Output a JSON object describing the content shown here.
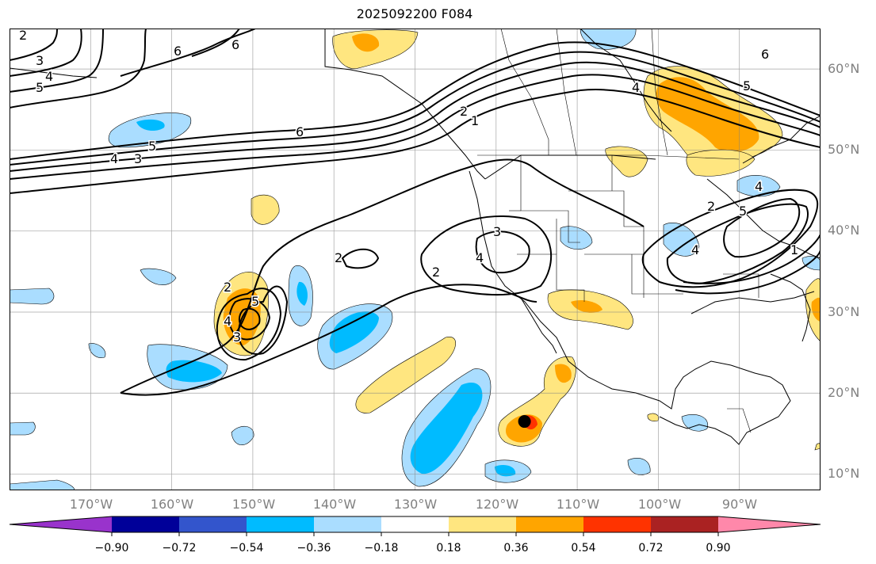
{
  "title": "2025092200 F084",
  "lat_ticks": [
    {
      "value": 60,
      "label": "60°N"
    },
    {
      "value": 50,
      "label": "50°N"
    },
    {
      "value": 40,
      "label": "40°N"
    },
    {
      "value": 30,
      "label": "30°N"
    },
    {
      "value": 20,
      "label": "20°N"
    },
    {
      "value": 10,
      "label": "10°N"
    }
  ],
  "lon_ticks": [
    {
      "value": -170,
      "label": "170°W"
    },
    {
      "value": -160,
      "label": "160°W"
    },
    {
      "value": -150,
      "label": "150°W"
    },
    {
      "value": -140,
      "label": "140°W"
    },
    {
      "value": -130,
      "label": "130°W"
    },
    {
      "value": -120,
      "label": "120°W"
    },
    {
      "value": -110,
      "label": "110°W"
    },
    {
      "value": -100,
      "label": "100°W"
    },
    {
      "value": -90,
      "label": "90°W"
    }
  ],
  "extent": {
    "lon_min": -180,
    "lon_max": -80,
    "lat_min": 8,
    "lat_max": 65
  },
  "colorbar": {
    "levels": [
      -0.9,
      -0.72,
      -0.54,
      -0.36,
      -0.18,
      0.18,
      0.36,
      0.54,
      0.72,
      0.9
    ],
    "labels": [
      "−0.90",
      "−0.72",
      "−0.54",
      "−0.36",
      "−0.18",
      "0.18",
      "0.36",
      "0.54",
      "0.72",
      "0.90"
    ],
    "colors": [
      "#9933cc",
      "#000099",
      "#3355cc",
      "#00bbff",
      "#aaddff",
      "#ffffff",
      "#ffe680",
      "#ffa500",
      "#ff3300",
      "#aa2222",
      "#ff88aa"
    ]
  },
  "contour_labels": [
    "1",
    "2",
    "3",
    "4",
    "5",
    "6"
  ],
  "storm_marker": {
    "lon": -116.5,
    "lat": 16.5
  }
}
